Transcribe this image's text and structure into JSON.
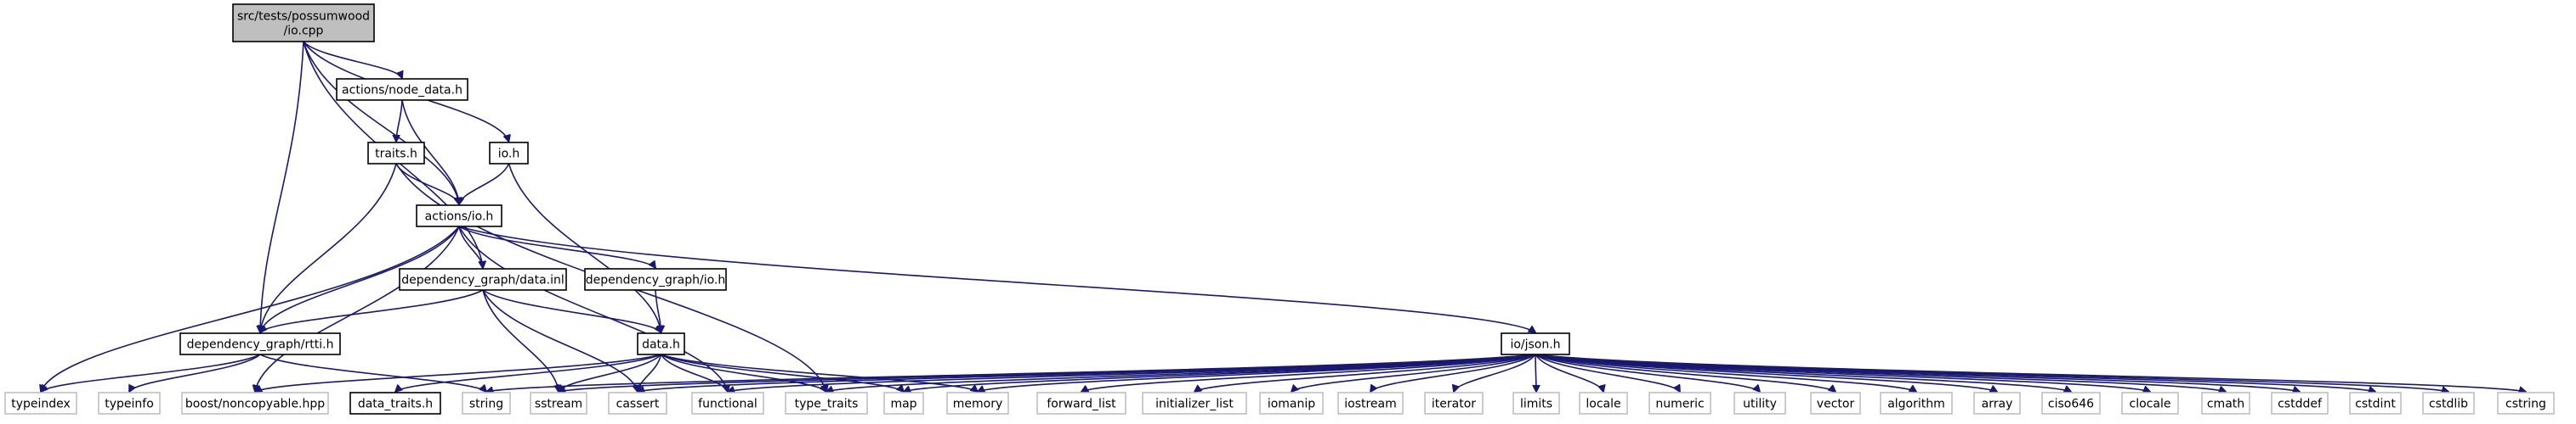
{
  "graph": {
    "nodes": [
      {
        "id": "root",
        "lines": [
          "src/tests/possumwood",
          "/io.cpp"
        ],
        "style": "root"
      },
      {
        "id": "actions_node_data",
        "lines": [
          "actions/node_data.h"
        ],
        "style": "normal"
      },
      {
        "id": "traits",
        "lines": [
          "traits.h"
        ],
        "style": "normal"
      },
      {
        "id": "io_h",
        "lines": [
          "io.h"
        ],
        "style": "normal"
      },
      {
        "id": "actions_io",
        "lines": [
          "actions/io.h"
        ],
        "style": "normal"
      },
      {
        "id": "dg_data_inl",
        "lines": [
          "dependency_graph/data.inl"
        ],
        "style": "normal"
      },
      {
        "id": "dg_io",
        "lines": [
          "dependency_graph/io.h"
        ],
        "style": "normal"
      },
      {
        "id": "dg_rtti",
        "lines": [
          "dependency_graph/rtti.h"
        ],
        "style": "normal"
      },
      {
        "id": "data_h",
        "lines": [
          "data.h"
        ],
        "style": "normal"
      },
      {
        "id": "io_json",
        "lines": [
          "io/json.h"
        ],
        "style": "normal"
      },
      {
        "id": "typeindex",
        "lines": [
          "typeindex"
        ],
        "style": "system"
      },
      {
        "id": "typeinfo",
        "lines": [
          "typeinfo"
        ],
        "style": "system"
      },
      {
        "id": "boost_noncopyable",
        "lines": [
          "boost/noncopyable.hpp"
        ],
        "style": "system"
      },
      {
        "id": "data_traits",
        "lines": [
          "data_traits.h"
        ],
        "style": "normal"
      },
      {
        "id": "string",
        "lines": [
          "string"
        ],
        "style": "system"
      },
      {
        "id": "sstream",
        "lines": [
          "sstream"
        ],
        "style": "system"
      },
      {
        "id": "cassert",
        "lines": [
          "cassert"
        ],
        "style": "system"
      },
      {
        "id": "functional",
        "lines": [
          "functional"
        ],
        "style": "system"
      },
      {
        "id": "type_traits",
        "lines": [
          "type_traits"
        ],
        "style": "system"
      },
      {
        "id": "map",
        "lines": [
          "map"
        ],
        "style": "system"
      },
      {
        "id": "memory",
        "lines": [
          "memory"
        ],
        "style": "system"
      },
      {
        "id": "forward_list",
        "lines": [
          "forward_list"
        ],
        "style": "system"
      },
      {
        "id": "initializer_list",
        "lines": [
          "initializer_list"
        ],
        "style": "system"
      },
      {
        "id": "iomanip",
        "lines": [
          "iomanip"
        ],
        "style": "system"
      },
      {
        "id": "iostream",
        "lines": [
          "iostream"
        ],
        "style": "system"
      },
      {
        "id": "iterator",
        "lines": [
          "iterator"
        ],
        "style": "system"
      },
      {
        "id": "limits",
        "lines": [
          "limits"
        ],
        "style": "system"
      },
      {
        "id": "locale",
        "lines": [
          "locale"
        ],
        "style": "system"
      },
      {
        "id": "numeric",
        "lines": [
          "numeric"
        ],
        "style": "system"
      },
      {
        "id": "utility",
        "lines": [
          "utility"
        ],
        "style": "system"
      },
      {
        "id": "vector",
        "lines": [
          "vector"
        ],
        "style": "system"
      },
      {
        "id": "algorithm",
        "lines": [
          "algorithm"
        ],
        "style": "system"
      },
      {
        "id": "array",
        "lines": [
          "array"
        ],
        "style": "system"
      },
      {
        "id": "ciso646",
        "lines": [
          "ciso646"
        ],
        "style": "system"
      },
      {
        "id": "clocale",
        "lines": [
          "clocale"
        ],
        "style": "system"
      },
      {
        "id": "cmath",
        "lines": [
          "cmath"
        ],
        "style": "system"
      },
      {
        "id": "cstddef",
        "lines": [
          "cstddef"
        ],
        "style": "system"
      },
      {
        "id": "cstdint",
        "lines": [
          "cstdint"
        ],
        "style": "system"
      },
      {
        "id": "cstdlib",
        "lines": [
          "cstdlib"
        ],
        "style": "system"
      },
      {
        "id": "cstring",
        "lines": [
          "cstring"
        ],
        "style": "system"
      }
    ],
    "edges": [
      [
        "root",
        "actions_node_data"
      ],
      [
        "root",
        "actions_io"
      ],
      [
        "root",
        "io_h"
      ],
      [
        "root",
        "dg_rtti"
      ],
      [
        "root",
        "dg_data_inl"
      ],
      [
        "actions_node_data",
        "traits"
      ],
      [
        "actions_node_data",
        "actions_io"
      ],
      [
        "traits",
        "actions_io"
      ],
      [
        "traits",
        "dg_rtti"
      ],
      [
        "traits",
        "type_traits"
      ],
      [
        "io_h",
        "actions_io"
      ],
      [
        "io_h",
        "data_h"
      ],
      [
        "actions_io",
        "dg_data_inl"
      ],
      [
        "actions_io",
        "dg_io"
      ],
      [
        "actions_io",
        "dg_rtti"
      ],
      [
        "actions_io",
        "io_json"
      ],
      [
        "actions_io",
        "typeindex"
      ],
      [
        "actions_io",
        "boost_noncopyable"
      ],
      [
        "actions_io",
        "functional"
      ],
      [
        "dg_data_inl",
        "dg_rtti"
      ],
      [
        "dg_data_inl",
        "data_h"
      ],
      [
        "dg_data_inl",
        "sstream"
      ],
      [
        "dg_data_inl",
        "cassert"
      ],
      [
        "dg_io",
        "data_h"
      ],
      [
        "dg_rtti",
        "typeindex"
      ],
      [
        "dg_rtti",
        "typeinfo"
      ],
      [
        "dg_rtti",
        "string"
      ],
      [
        "data_h",
        "boost_noncopyable"
      ],
      [
        "data_h",
        "data_traits"
      ],
      [
        "data_h",
        "sstream"
      ],
      [
        "data_h",
        "cassert"
      ],
      [
        "data_h",
        "functional"
      ],
      [
        "data_h",
        "type_traits"
      ],
      [
        "data_h",
        "map"
      ],
      [
        "data_h",
        "memory"
      ],
      [
        "io_json",
        "string"
      ],
      [
        "io_json",
        "sstream"
      ],
      [
        "io_json",
        "cassert"
      ],
      [
        "io_json",
        "functional"
      ],
      [
        "io_json",
        "type_traits"
      ],
      [
        "io_json",
        "map"
      ],
      [
        "io_json",
        "memory"
      ],
      [
        "io_json",
        "forward_list"
      ],
      [
        "io_json",
        "initializer_list"
      ],
      [
        "io_json",
        "iomanip"
      ],
      [
        "io_json",
        "iostream"
      ],
      [
        "io_json",
        "iterator"
      ],
      [
        "io_json",
        "limits"
      ],
      [
        "io_json",
        "locale"
      ],
      [
        "io_json",
        "numeric"
      ],
      [
        "io_json",
        "utility"
      ],
      [
        "io_json",
        "vector"
      ],
      [
        "io_json",
        "algorithm"
      ],
      [
        "io_json",
        "array"
      ],
      [
        "io_json",
        "ciso646"
      ],
      [
        "io_json",
        "clocale"
      ],
      [
        "io_json",
        "cmath"
      ],
      [
        "io_json",
        "cstddef"
      ],
      [
        "io_json",
        "cstdint"
      ],
      [
        "io_json",
        "cstdlib"
      ],
      [
        "io_json",
        "cstring"
      ]
    ]
  }
}
